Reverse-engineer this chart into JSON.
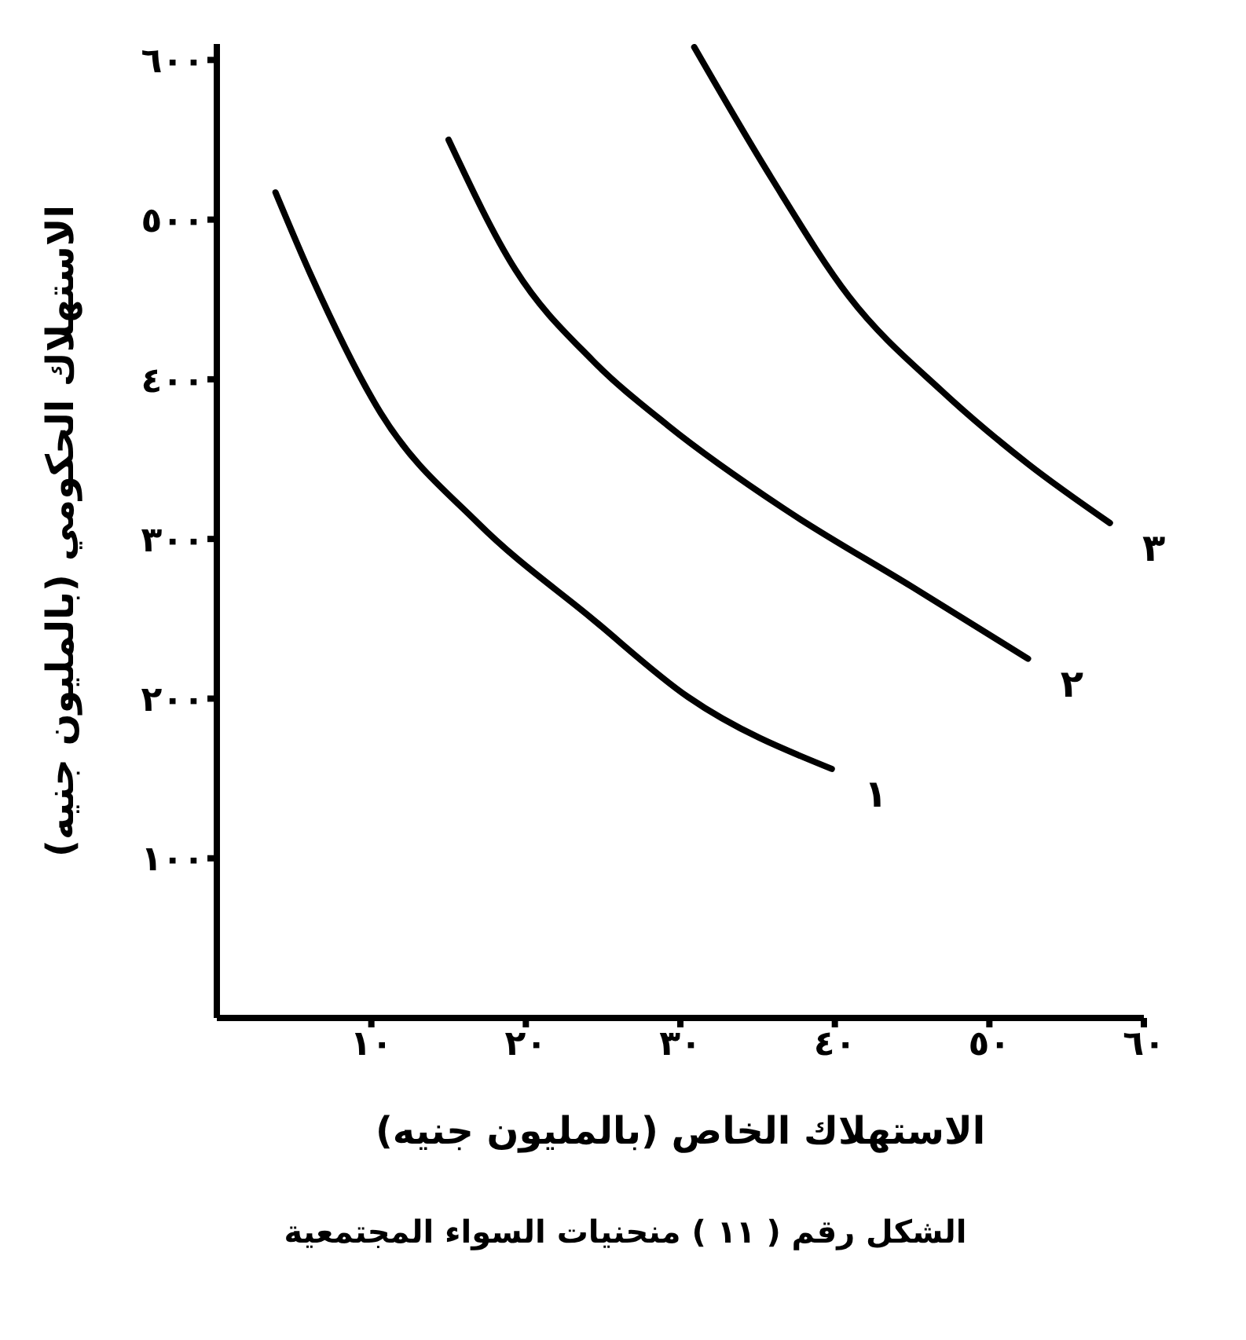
{
  "chart_data": {
    "type": "line",
    "xlabel": "الاستهلاك الخاص (بالمليون جنيه)",
    "ylabel": "الاستهلاك الحكومي (بالمليون جنيه)",
    "annotations": [
      "الشكل رقم ( ١١ ) منحنيات السواء المجتمعية"
    ],
    "xlim": [
      0,
      60
    ],
    "xticks": [
      {
        "value": 10,
        "label": "١٠"
      },
      {
        "value": 20,
        "label": "٢٠"
      },
      {
        "value": 30,
        "label": "٣٠"
      },
      {
        "value": 40,
        "label": "٤٠"
      },
      {
        "value": 50,
        "label": "٥٠"
      },
      {
        "value": 60,
        "label": "٦٠"
      }
    ],
    "ylim": [
      0,
      610
    ],
    "yticks": [
      {
        "value": 100,
        "label": "١٠٠"
      },
      {
        "value": 200,
        "label": "٢٠٠"
      },
      {
        "value": 300,
        "label": "٣٠٠"
      },
      {
        "value": 400,
        "label": "٤٠٠"
      },
      {
        "value": 500,
        "label": "٥٠٠"
      },
      {
        "value": 600,
        "label": "٦٠٠"
      }
    ],
    "grid": false,
    "legend": false,
    "marker": "none",
    "line_style": "solid",
    "series": [
      {
        "name": "١",
        "color": "#000000",
        "x": [
          3.8,
          6.1,
          10.6,
          16.9,
          24.3,
          30.5,
          39.8
        ],
        "values": [
          517,
          465,
          379,
          310,
          250,
          201,
          156
        ]
      },
      {
        "name": "٢",
        "color": "#000000",
        "x": [
          15,
          19.3,
          24.3,
          29.2,
          36.7,
          45,
          52.5
        ],
        "values": [
          550,
          469,
          412,
          371,
          319,
          270,
          225
        ]
      },
      {
        "name": "٣",
        "color": "#000000",
        "x": [
          30.9,
          35.9,
          40.9,
          47,
          52.5,
          57.8
        ],
        "values": [
          608,
          526,
          452,
          392,
          347,
          310
        ]
      }
    ]
  }
}
